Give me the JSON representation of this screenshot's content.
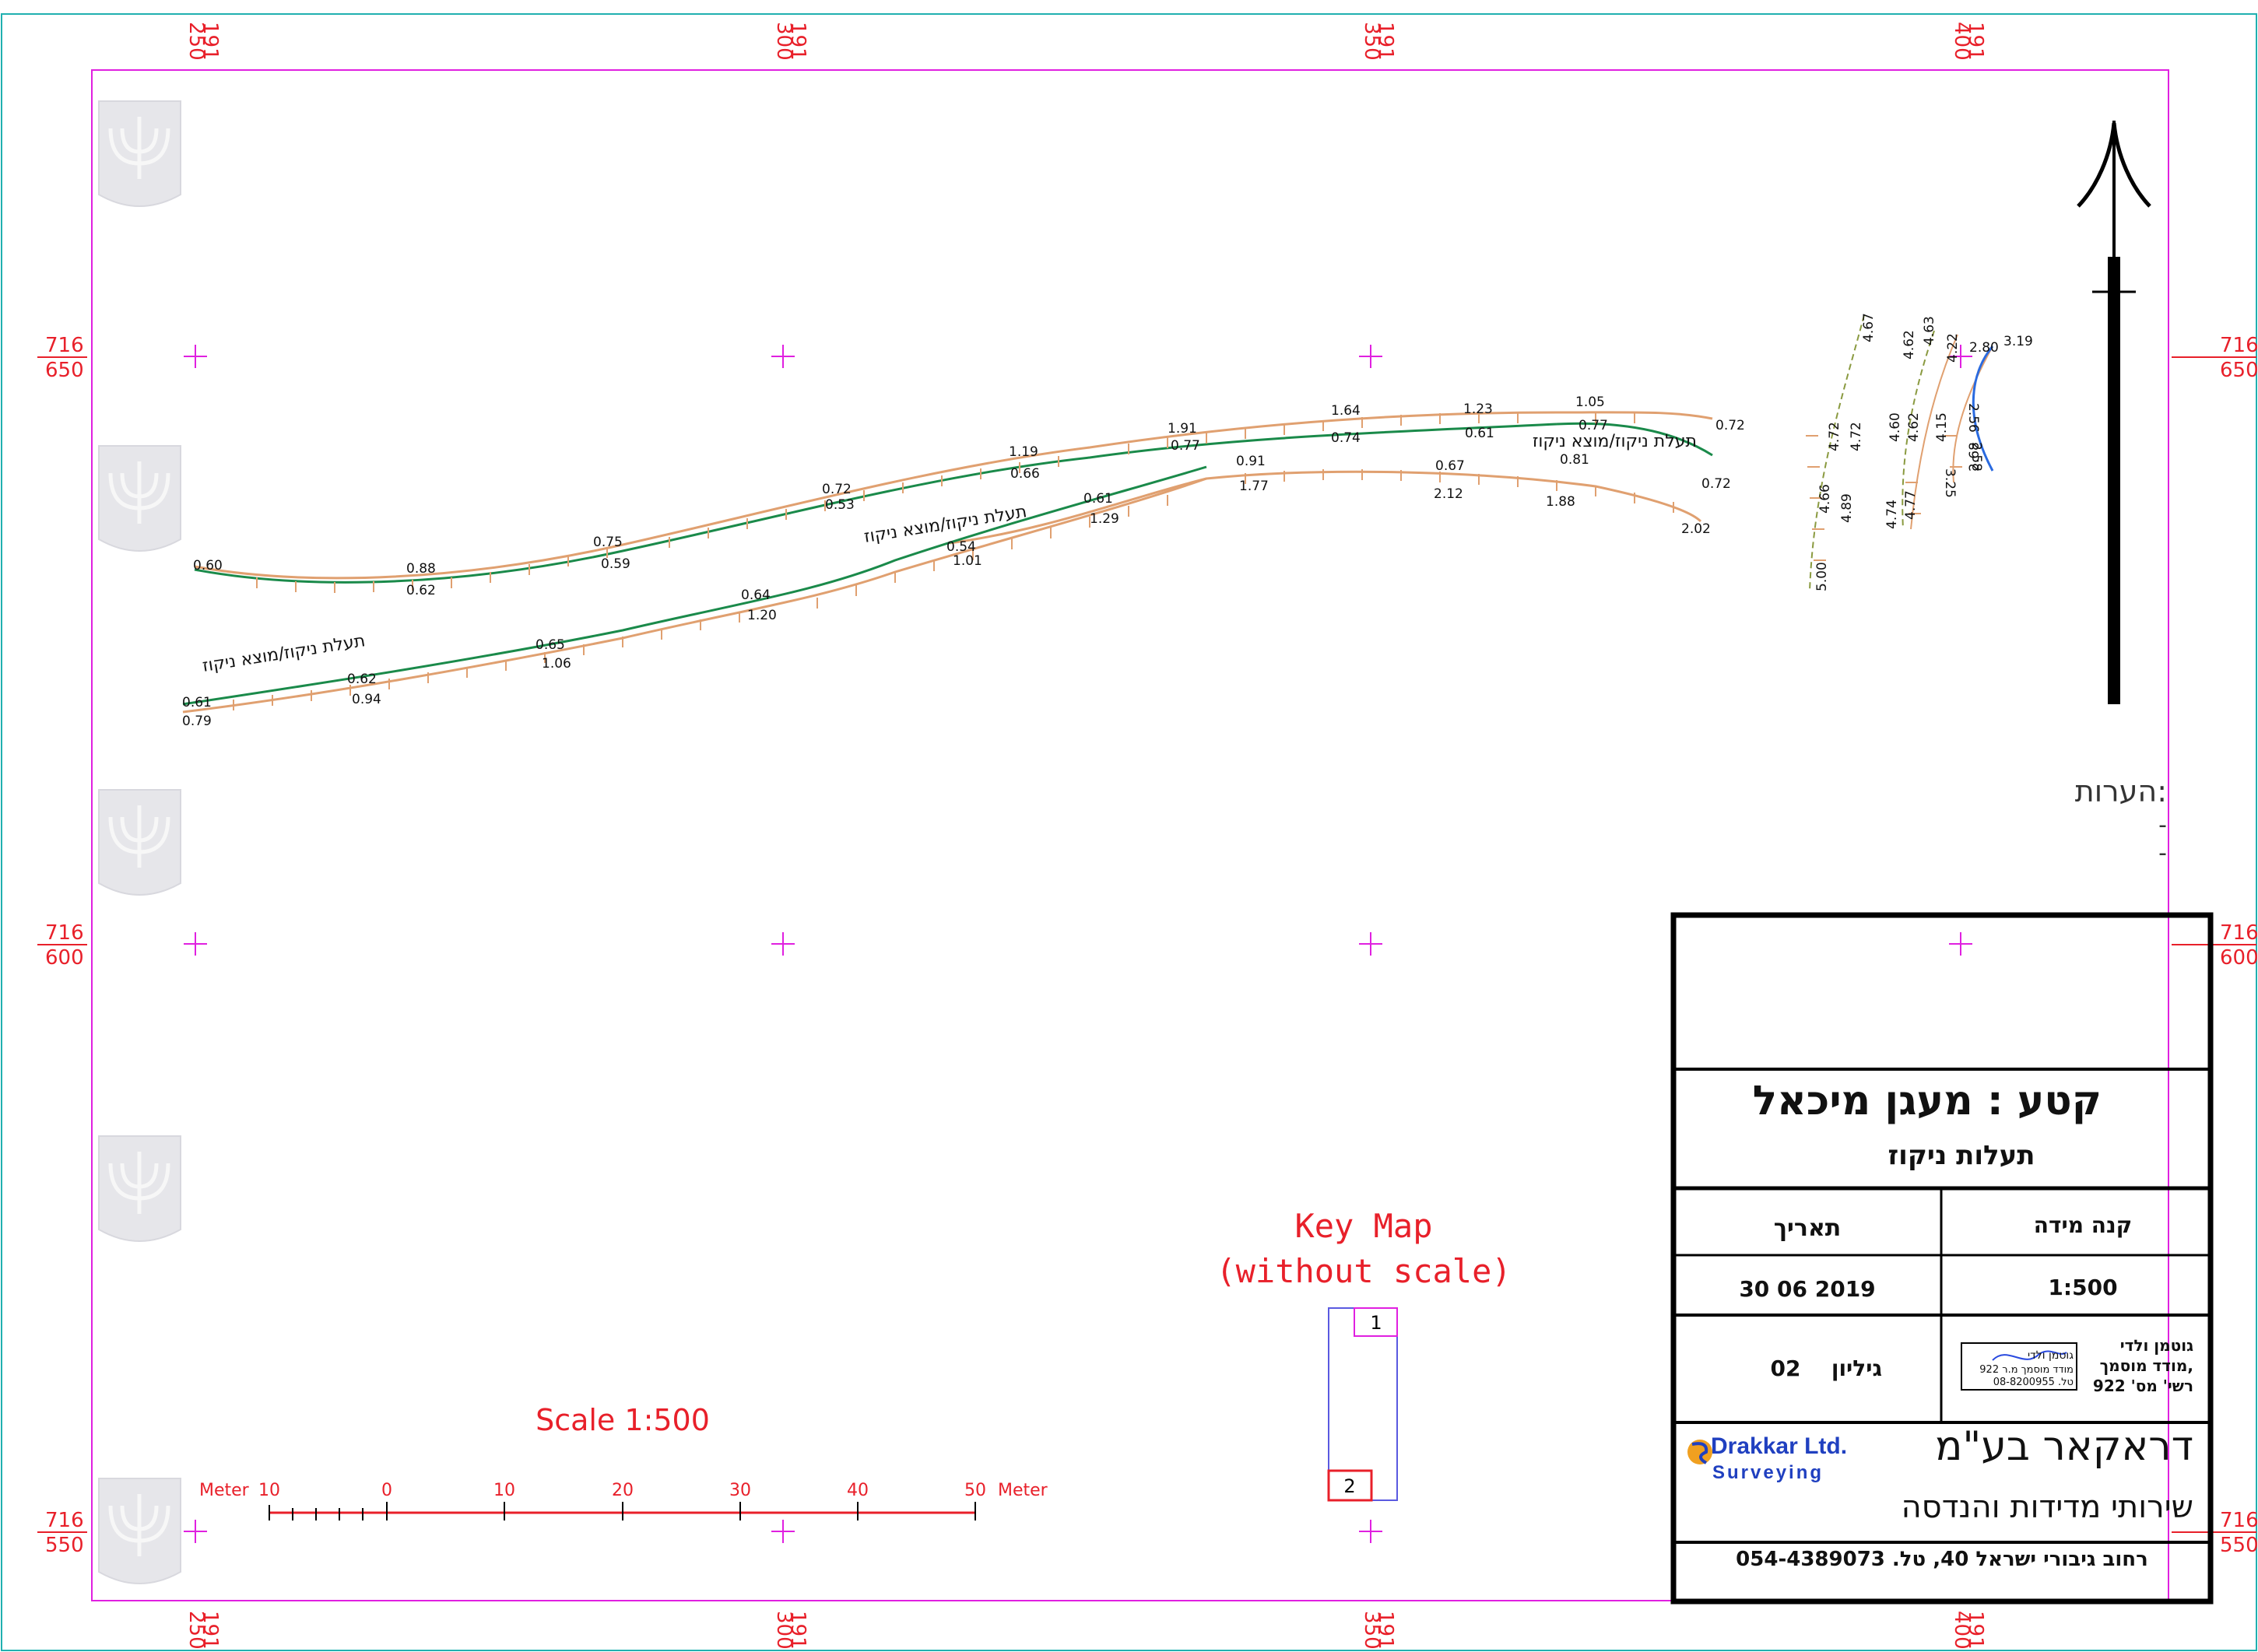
{
  "grid": {
    "top_x_labels": [
      {
        "a": "250",
        "b": "191"
      },
      {
        "a": "300",
        "b": "191"
      },
      {
        "a": "350",
        "b": "191"
      },
      {
        "a": "400",
        "b": "191"
      }
    ],
    "bottom_x_labels": [
      {
        "a": "250",
        "b": "191"
      },
      {
        "a": "300",
        "b": "191"
      },
      {
        "a": "350",
        "b": "191"
      },
      {
        "a": "400",
        "b": "191"
      }
    ],
    "left_y_labels": [
      {
        "a": "716",
        "b": "650"
      },
      {
        "a": "716",
        "b": "600"
      },
      {
        "a": "716",
        "b": "550"
      }
    ],
    "right_y_labels": [
      {
        "a": "716",
        "b": "650"
      },
      {
        "a": "716",
        "b": "600"
      },
      {
        "a": "716",
        "b": "550"
      }
    ]
  },
  "channels": {
    "labels": {
      "upper": "תעלת ניקוז/מוצא ניקוז",
      "middle": "תעלת ניקוז/מוצא ניקוז",
      "lower": "תעלת ניקוז/מוצא ניקוז"
    },
    "upper_values": [
      "0.60",
      "0.88",
      "0.62",
      "0.75",
      "0.59",
      "0.72",
      "0.53",
      "1.19",
      "0.66",
      "1.91",
      "0.77",
      "1.64",
      "0.74",
      "1.23",
      "0.61",
      "1.05",
      "0.77",
      "0.72"
    ],
    "middle_values": [
      "0.54",
      "1.01",
      "0.61",
      "1.29",
      "0.91",
      "1.77",
      "0.67",
      "2.12",
      "0.81",
      "1.88",
      "0.72",
      "2.02"
    ],
    "lower_values": [
      "0.61",
      "0.79",
      "0.62",
      "0.94",
      "0.65",
      "1.06",
      "0.64",
      "1.20"
    ],
    "right_values": [
      "4.67",
      "4.72",
      "4.72",
      "4.66",
      "4.89",
      "5.00",
      "4.62",
      "4.63",
      "4.60",
      "4.62",
      "4.74",
      "4.77",
      "4.22",
      "4.15",
      "2.80",
      "3.19",
      "2.56",
      "2.58",
      "2.68",
      "3.25"
    ]
  },
  "notes": {
    "title": "הערות:",
    "items": [
      "-",
      "-"
    ]
  },
  "key_map": {
    "title": "Key Map",
    "subtitle": "(without scale)",
    "sheet1": "1",
    "sheet2": "2"
  },
  "scale_bar": {
    "title": "Scale 1:500",
    "unit_left": "Meter",
    "unit_right": "Meter",
    "ticks": [
      "10",
      "0",
      "10",
      "20",
      "30",
      "40",
      "50"
    ]
  },
  "title_block": {
    "section": "קטע : מעגן מיכאל",
    "subject": "תעלות ניקוז",
    "scale_label": "קנה מידה",
    "scale_value": "1:500",
    "date_label": "תאריך",
    "date_value": "30 06 2019",
    "surveyor_line1": "גוטמן ולדי",
    "surveyor_line2": "מודד מוסמך,",
    "surveyor_line3": "רשי' מס' 922",
    "stamp_line1": "גוטמן ולדי",
    "stamp_line2": "מודד מוסמך מ.ר 922",
    "stamp_line3": "טל. 08-8200955",
    "sheet_label": "גיליון",
    "sheet_value": "02",
    "company_name": "דראקאר בע\"מ",
    "company_services": "שירותי מדידות והנדסה",
    "logo_name": "Drakkar Ltd.",
    "logo_sub": "Surveying",
    "address": "רחוב גיבורי ישראל 40, טל. 054-4389073"
  },
  "north_arrow": {
    "icon": "north-arrow-icon"
  },
  "colors": {
    "grid_frame": "#e020e0",
    "coord_text": "#e8202a",
    "channel_edge": "#e0a070",
    "channel_center": "#1a8a4a",
    "keymap_text": "#e8202a"
  }
}
